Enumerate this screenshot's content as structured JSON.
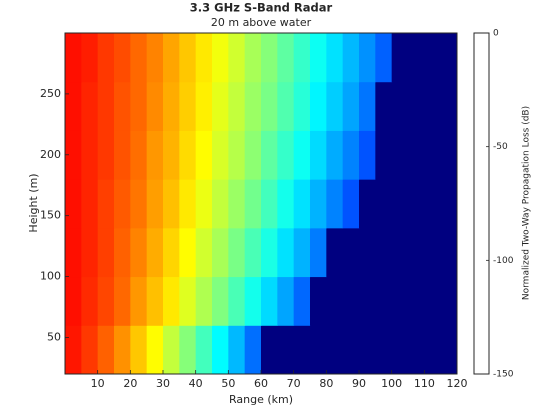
{
  "chart_data": {
    "type": "heatmap",
    "title": "3.3 GHz S-Band Radar",
    "subtitle": "20 m above water",
    "xlabel": "Range (km)",
    "ylabel": "Height (m)",
    "colorbar_label": "Normalized Two-Way Propagation Loss (dB)",
    "colormap": "jet",
    "x_bins": [
      0,
      5,
      10,
      15,
      20,
      25,
      30,
      35,
      40,
      45,
      50,
      55,
      60,
      65,
      70,
      75,
      80,
      85,
      90,
      95,
      100,
      105,
      110,
      115,
      120
    ],
    "y_bins": [
      20,
      60,
      100,
      140,
      180,
      220,
      260,
      300
    ],
    "values": [
      [
        -22,
        -27,
        -33,
        -40,
        -48,
        -56,
        -65,
        -74,
        -84,
        -94,
        -104,
        -115,
        -150,
        -150,
        -150,
        -150,
        -150,
        -150,
        -150,
        -150,
        -150,
        -150,
        -150,
        -150
      ],
      [
        -21,
        -25,
        -29,
        -34,
        -41,
        -47,
        -53,
        -61,
        -68,
        -75,
        -83,
        -91,
        -99,
        -107,
        -116,
        -150,
        -150,
        -150,
        -150,
        -150,
        -150,
        -150,
        -150,
        -150
      ],
      [
        -21,
        -24,
        -28,
        -33,
        -38,
        -44,
        -50,
        -56,
        -63,
        -69,
        -76,
        -83,
        -90,
        -98,
        -105,
        -113,
        -150,
        -150,
        -150,
        -150,
        -150,
        -150,
        -150,
        -150
      ],
      [
        -21,
        -24,
        -28,
        -32,
        -36,
        -42,
        -47,
        -53,
        -59,
        -65,
        -71,
        -77,
        -84,
        -91,
        -98,
        -105,
        -112,
        -119,
        -150,
        -150,
        -150,
        -150,
        -150,
        -150
      ],
      [
        -21,
        -24,
        -27,
        -31,
        -35,
        -41,
        -45,
        -51,
        -56,
        -62,
        -67,
        -73,
        -80,
        -86,
        -92,
        -99,
        -106,
        -112,
        -119,
        -150,
        -150,
        -150,
        -150,
        -150
      ],
      [
        -21,
        -24,
        -27,
        -31,
        -34,
        -39,
        -44,
        -49,
        -54,
        -60,
        -65,
        -71,
        -76,
        -82,
        -88,
        -95,
        -101,
        -107,
        -114,
        -150,
        -150,
        -150,
        -150,
        -150
      ],
      [
        -21,
        -23,
        -27,
        -30,
        -34,
        -38,
        -43,
        -48,
        -53,
        -58,
        -63,
        -69,
        -74,
        -80,
        -86,
        -92,
        -98,
        -104,
        -110,
        -117,
        -150,
        -150,
        -150,
        -150
      ]
    ],
    "xlim": [
      0,
      120
    ],
    "ylim": [
      20,
      300
    ],
    "xticks": [
      10,
      20,
      30,
      40,
      50,
      60,
      70,
      80,
      90,
      100,
      110,
      120
    ],
    "yticks": [
      50,
      100,
      150,
      200,
      250
    ],
    "clim": [
      -150,
      0
    ],
    "cticks": [
      0,
      -50,
      -100,
      -150
    ]
  }
}
